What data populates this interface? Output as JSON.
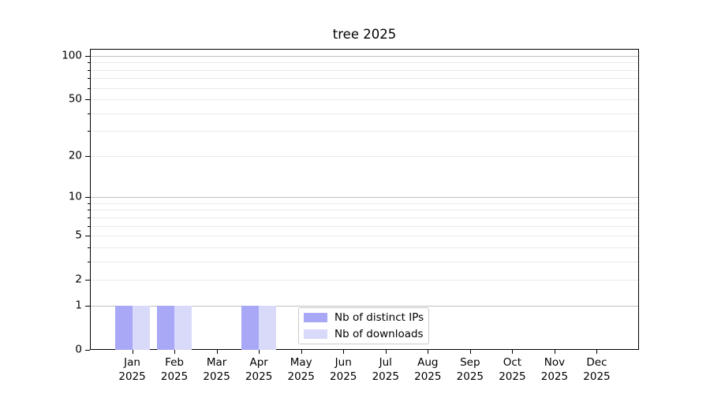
{
  "title": "tree 2025",
  "chart_data": {
    "type": "bar",
    "title": "tree 2025",
    "categories": [
      "Jan 2025",
      "Feb 2025",
      "Mar 2025",
      "Apr 2025",
      "May 2025",
      "Jun 2025",
      "Jul 2025",
      "Aug 2025",
      "Sep 2025",
      "Oct 2025",
      "Nov 2025",
      "Dec 2025"
    ],
    "months": [
      "Jan",
      "Feb",
      "Mar",
      "Apr",
      "May",
      "Jun",
      "Jul",
      "Aug",
      "Sep",
      "Oct",
      "Nov",
      "Dec"
    ],
    "year_label": "2025",
    "series": [
      {
        "name": "Nb of distinct IPs",
        "color": "#a8a8f6",
        "values": [
          1,
          1,
          0,
          1,
          0,
          0,
          0,
          0,
          0,
          0,
          0,
          0
        ]
      },
      {
        "name": "Nb of downloads",
        "color": "#d9d9fa",
        "values": [
          1,
          1,
          0,
          1,
          0,
          0,
          0,
          0,
          0,
          0,
          0,
          0
        ]
      }
    ],
    "xlabel": "",
    "ylabel": "",
    "yscale": "log1p",
    "ylim": [
      0,
      111
    ],
    "y_ticks": [
      0,
      1,
      2,
      5,
      10,
      20,
      50,
      100
    ],
    "y_major_grid": [
      1,
      10,
      100
    ],
    "y_minor_grid": [
      2,
      3,
      4,
      5,
      6,
      7,
      8,
      9,
      20,
      30,
      40,
      50,
      60,
      70,
      80,
      90
    ],
    "grid": "horizontal",
    "legend_position": "lower center"
  },
  "colors": {
    "bar_distinct_ips": "#a8a8f6",
    "bar_downloads": "#d9d9fa",
    "grid_major": "#bfbfbf",
    "grid_minor": "#e9e9e9",
    "axis": "#000000",
    "legend_border": "#cccccc"
  }
}
